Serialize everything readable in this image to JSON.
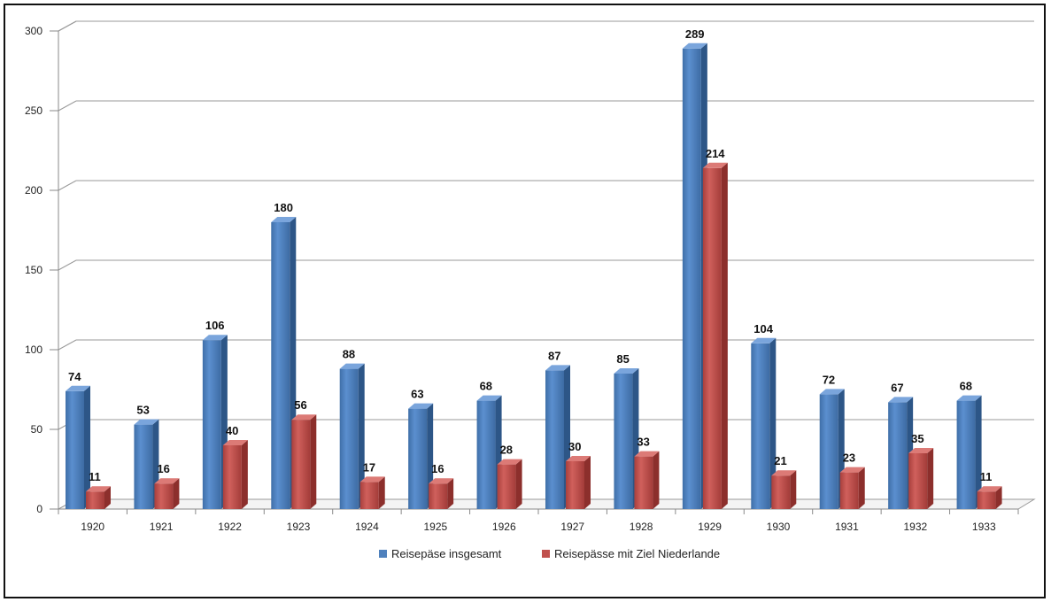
{
  "chart_data": {
    "type": "bar",
    "style": "3d-clustered-column",
    "categories": [
      "1920",
      "1921",
      "1922",
      "1923",
      "1924",
      "1925",
      "1926",
      "1927",
      "1928",
      "1929",
      "1930",
      "1931",
      "1932",
      "1933"
    ],
    "series": [
      {
        "name": "Reisepäse insgesamt",
        "color": "#4f81bd",
        "values": [
          74,
          53,
          106,
          180,
          88,
          63,
          68,
          87,
          85,
          289,
          104,
          72,
          67,
          68
        ]
      },
      {
        "name": "Reisepässe mit Ziel Niederlande",
        "color": "#c0504d",
        "values": [
          11,
          16,
          40,
          56,
          17,
          16,
          28,
          30,
          33,
          214,
          21,
          23,
          35,
          11
        ]
      }
    ],
    "yticks": [
      0,
      50,
      100,
      150,
      200,
      250,
      300
    ],
    "ylim": [
      0,
      300
    ],
    "grid": true,
    "data_labels": true,
    "legend_position": "bottom"
  }
}
